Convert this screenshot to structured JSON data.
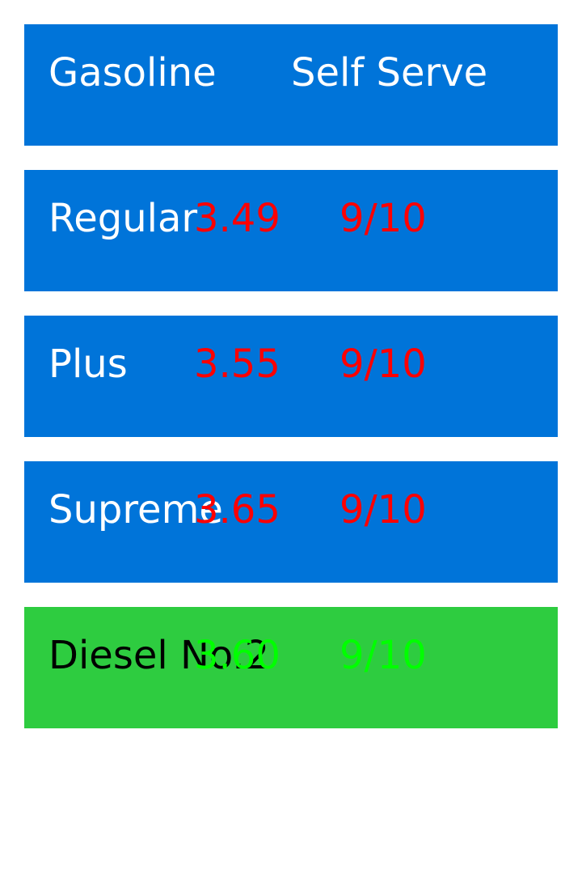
{
  "header": {
    "title": "Gasoline",
    "subtitle": "Self Serve",
    "background": "#0074d9",
    "text_color": "#ffffff"
  },
  "grades": [
    {
      "name": "Regular",
      "price": "3.49",
      "fraction": "9/10",
      "background": "#0074d9",
      "name_color": "#ffffff",
      "price_color": "#ff0000"
    },
    {
      "name": "Plus",
      "price": "3.55",
      "fraction": "9/10",
      "background": "#0074d9",
      "name_color": "#ffffff",
      "price_color": "#ff0000"
    },
    {
      "name": "Supreme",
      "price": "3.65",
      "fraction": "9/10",
      "background": "#0074d9",
      "name_color": "#ffffff",
      "price_color": "#ff0000"
    },
    {
      "name": "Diesel No.2",
      "price": "3.60",
      "fraction": "9/10",
      "background": "#2ecc40",
      "name_color": "#000000",
      "price_color": "#00ff00"
    }
  ]
}
